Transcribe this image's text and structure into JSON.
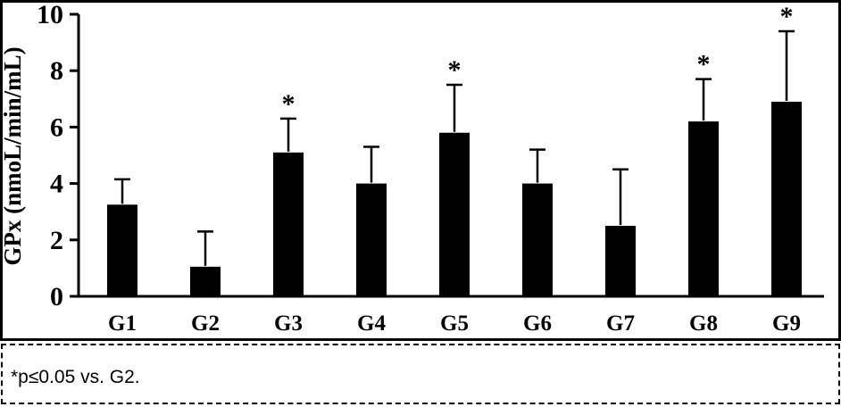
{
  "chart_data": {
    "type": "bar",
    "title": "",
    "categories": [
      "G1",
      "G2",
      "G3",
      "G4",
      "G5",
      "G6",
      "G7",
      "G8",
      "G9"
    ],
    "values": [
      3.25,
      1.05,
      5.1,
      4.0,
      5.8,
      4.0,
      2.5,
      6.2,
      6.9
    ],
    "errors": [
      0.9,
      1.25,
      1.2,
      1.3,
      1.7,
      1.2,
      2.0,
      1.5,
      2.5
    ],
    "significant": [
      false,
      false,
      true,
      false,
      true,
      false,
      false,
      true,
      true
    ],
    "significance_marker": "*",
    "xlabel": "",
    "ylabel": "GPx (nmoL/min/mL)",
    "ylim": [
      0,
      10
    ],
    "yticks": [
      0,
      2,
      4,
      6,
      8,
      10
    ],
    "grid": false,
    "legend": "none",
    "bar_color": "#000000",
    "axis_color": "#000000",
    "background_color": "#ffffff"
  },
  "footnote": {
    "text": "*p≤0.05 vs. G2."
  }
}
